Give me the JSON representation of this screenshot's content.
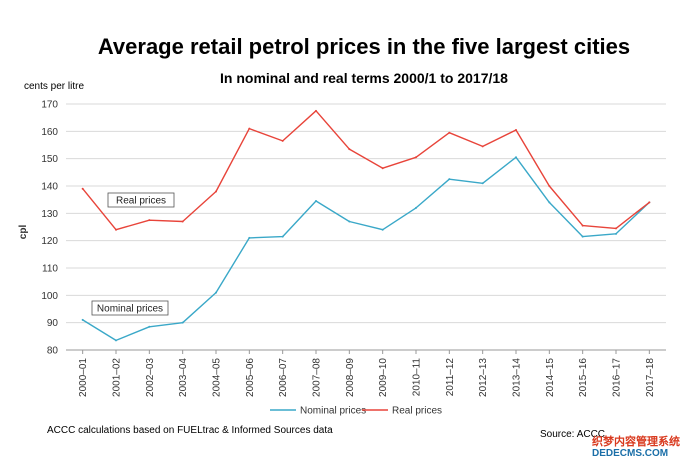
{
  "title": "Average retail petrol prices in the five largest cities",
  "subtitle": "In nominal and real terms 2000/1 to 2017/18",
  "footnote": "ACCC calculations based on FUELtrac & Informed Sources data",
  "source": "Source: ACCC",
  "watermark": {
    "line1": "织梦内容管理系统",
    "line2": "DEDECMS.COM"
  },
  "colors": {
    "nominal": "#3aa8c8",
    "real": "#e8443a",
    "grid": "#d9d9d9"
  },
  "chart_data": {
    "type": "line",
    "unit_label": "cents per litre",
    "ylabel": "cpl",
    "ylim": [
      80,
      170
    ],
    "yticks": [
      80,
      90,
      100,
      110,
      120,
      130,
      140,
      150,
      160,
      170
    ],
    "grid": "horizontal",
    "legend_position": "bottom",
    "categories": [
      "2000–01",
      "2001–02",
      "2002–03",
      "2003–04",
      "2004–05",
      "2005–06",
      "2006–07",
      "2007–08",
      "2008–09",
      "2009–10",
      "2010–11",
      "2011–12",
      "2012–13",
      "2013–14",
      "2014–15",
      "2015–16",
      "2016–17",
      "2017–18"
    ],
    "series": [
      {
        "name": "Nominal prices",
        "color_key": "nominal",
        "values": [
          91,
          83.5,
          88.5,
          90,
          101,
          121,
          121.5,
          134.5,
          127,
          124,
          132,
          142.5,
          141,
          150.5,
          134,
          121.5,
          122.5,
          134
        ]
      },
      {
        "name": "Real prices",
        "color_key": "real",
        "values": [
          139,
          124,
          127.5,
          127,
          138,
          161,
          156.5,
          167.5,
          153.5,
          146.5,
          150.5,
          159.5,
          154.5,
          160.5,
          140,
          125.5,
          124.5,
          134
        ]
      }
    ],
    "annotations": [
      {
        "text": "Real prices",
        "series": 1
      },
      {
        "text": "Nominal prices",
        "series": 0
      }
    ]
  }
}
